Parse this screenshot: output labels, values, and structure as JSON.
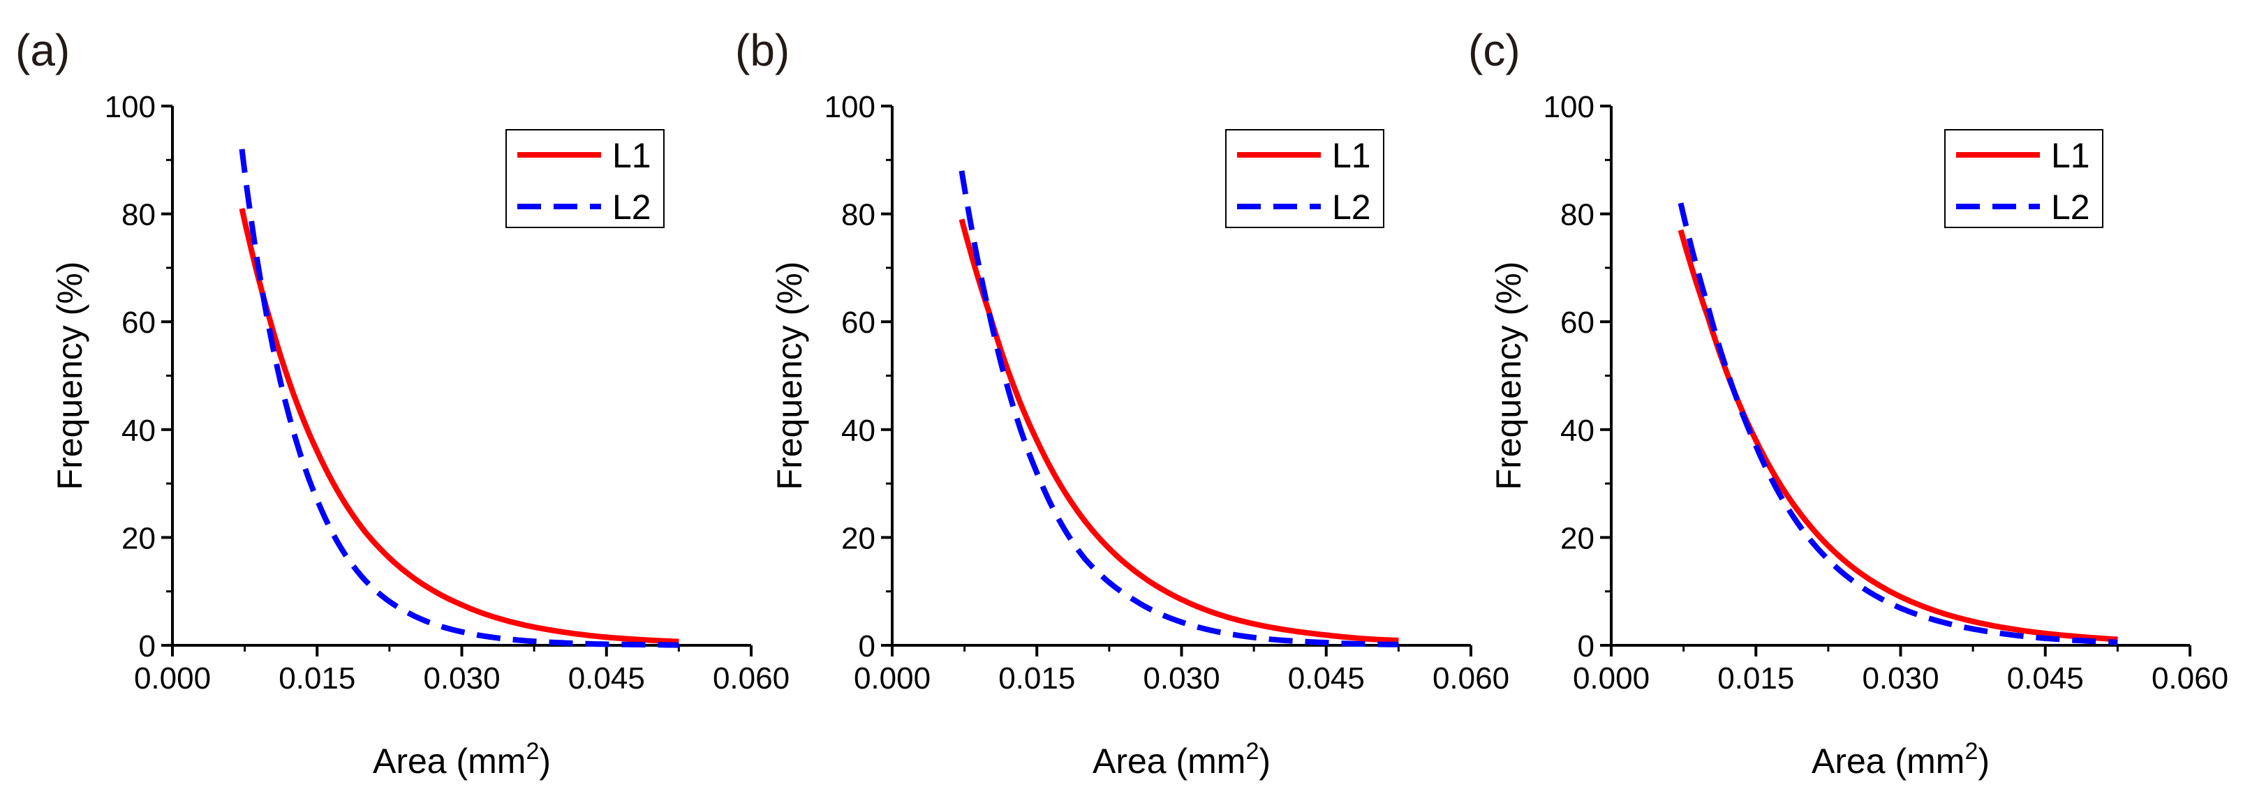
{
  "chart_data": [
    {
      "panel_label": "(a)",
      "type": "line",
      "xlabel": "Area (mm",
      "xlabel_sup": "2",
      "xlabel_end": ")",
      "ylabel": "Frequency (%)",
      "xlim": [
        0.0,
        0.06
      ],
      "ylim": [
        0,
        100
      ],
      "xticks": [
        "0.000",
        "0.015",
        "0.030",
        "0.045",
        "0.060"
      ],
      "yticks": [
        "0",
        "20",
        "40",
        "60",
        "80",
        "100"
      ],
      "legend_position": "top-right",
      "series": [
        {
          "name": "L1",
          "color": "#ff0000",
          "style": "solid",
          "x": [
            0.0072,
            0.01,
            0.015,
            0.02,
            0.025,
            0.03,
            0.035,
            0.04,
            0.045,
            0.05,
            0.0525
          ],
          "y": [
            81,
            61,
            36,
            21,
            12.5,
            7.5,
            4.4,
            2.6,
            1.5,
            0.9,
            0.7
          ]
        },
        {
          "name": "L2",
          "color": "#0000ff",
          "style": "dashed",
          "x": [
            0.0072,
            0.01,
            0.015,
            0.02,
            0.025,
            0.03,
            0.035,
            0.04,
            0.045,
            0.05,
            0.0525
          ],
          "y": [
            92,
            59,
            27,
            12,
            5.5,
            2.5,
            1.1,
            0.5,
            0.2,
            0.1,
            0.05
          ]
        }
      ]
    },
    {
      "panel_label": "(b)",
      "type": "line",
      "xlabel": "Area (mm",
      "xlabel_sup": "2",
      "xlabel_end": ")",
      "ylabel": "Frequency (%)",
      "xlim": [
        0.0,
        0.06
      ],
      "ylim": [
        0,
        100
      ],
      "xticks": [
        "0.000",
        "0.015",
        "0.030",
        "0.045",
        "0.060"
      ],
      "yticks": [
        "0",
        "20",
        "40",
        "60",
        "80",
        "100"
      ],
      "legend_position": "top-right",
      "series": [
        {
          "name": "L1",
          "color": "#ff0000",
          "style": "solid",
          "x": [
            0.0072,
            0.01,
            0.015,
            0.02,
            0.025,
            0.03,
            0.035,
            0.04,
            0.045,
            0.05,
            0.0525
          ],
          "y": [
            79,
            62,
            38,
            23,
            14,
            8.5,
            5.1,
            3.1,
            1.9,
            1.1,
            0.9
          ]
        },
        {
          "name": "L2",
          "color": "#0000ff",
          "style": "dashed",
          "x": [
            0.0072,
            0.01,
            0.015,
            0.02,
            0.025,
            0.03,
            0.035,
            0.04,
            0.045,
            0.05,
            0.0525
          ],
          "y": [
            88,
            62,
            32,
            16,
            8.5,
            4.3,
            2.1,
            1.0,
            0.5,
            0.2,
            0.15
          ]
        }
      ]
    },
    {
      "panel_label": "(c)",
      "type": "line",
      "xlabel": "Area (mm",
      "xlabel_sup": "2",
      "xlabel_end": ")",
      "ylabel": "Frequency (%)",
      "xlim": [
        0.0,
        0.06
      ],
      "ylim": [
        0,
        100
      ],
      "xticks": [
        "0.000",
        "0.015",
        "0.030",
        "0.045",
        "0.060"
      ],
      "yticks": [
        "0",
        "20",
        "40",
        "60",
        "80",
        "100"
      ],
      "legend_position": "top-right",
      "series": [
        {
          "name": "L1",
          "color": "#ff0000",
          "style": "solid",
          "x": [
            0.0072,
            0.01,
            0.015,
            0.02,
            0.025,
            0.03,
            0.035,
            0.04,
            0.045,
            0.05,
            0.0525
          ],
          "y": [
            77,
            61,
            38,
            23.5,
            14.5,
            9,
            5.6,
            3.5,
            2.2,
            1.4,
            1.1
          ]
        },
        {
          "name": "L2",
          "color": "#0000ff",
          "style": "dashed",
          "x": [
            0.0072,
            0.01,
            0.015,
            0.02,
            0.025,
            0.03,
            0.035,
            0.04,
            0.045,
            0.05,
            0.0525
          ],
          "y": [
            82,
            63,
            37,
            21,
            12,
            6.9,
            4.0,
            2.3,
            1.3,
            0.75,
            0.55
          ]
        }
      ]
    }
  ]
}
